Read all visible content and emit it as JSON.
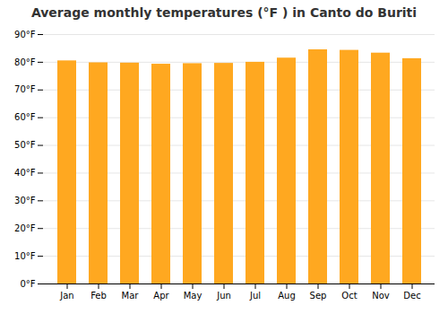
{
  "chart_data": {
    "type": "bar",
    "title": "Average monthly temperatures (°F ) in Canto do Buriti",
    "categories": [
      "Jan",
      "Feb",
      "Mar",
      "Apr",
      "May",
      "Jun",
      "Jul",
      "Aug",
      "Sep",
      "Oct",
      "Nov",
      "Dec"
    ],
    "values": [
      80.5,
      79.8,
      79.7,
      79.3,
      79.5,
      79.6,
      80.0,
      81.5,
      84.5,
      84.3,
      83.3,
      81.3
    ],
    "color": "#FFA820",
    "ylim": [
      0,
      90
    ],
    "yticks": [
      {
        "value": 0,
        "label": "0°F"
      },
      {
        "value": 10,
        "label": "10°F"
      },
      {
        "value": 20,
        "label": "20°F"
      },
      {
        "value": 30,
        "label": "30°F"
      },
      {
        "value": 40,
        "label": "40°F"
      },
      {
        "value": 50,
        "label": "50°F"
      },
      {
        "value": 60,
        "label": "60°F"
      },
      {
        "value": 70,
        "label": "70°F"
      },
      {
        "value": 80,
        "label": "80°F"
      },
      {
        "value": 90,
        "label": "90°F"
      }
    ],
    "grid": true
  }
}
